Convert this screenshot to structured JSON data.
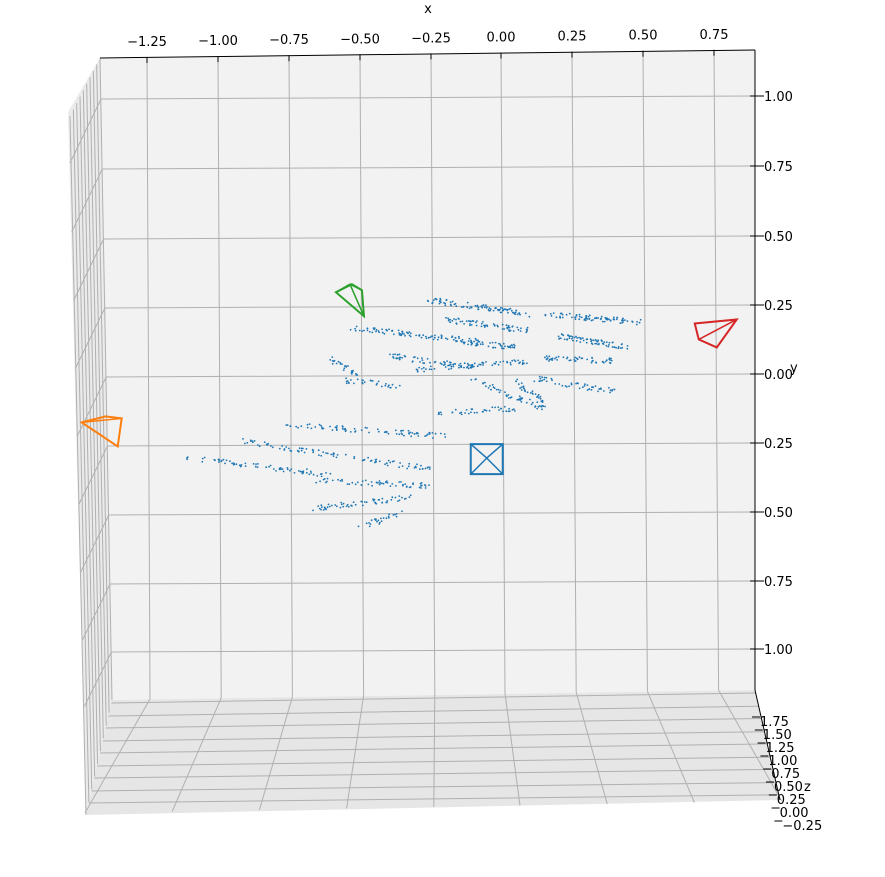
{
  "chart_data": {
    "type": "scatter",
    "title": "",
    "xlabel": "x",
    "ylabel": "y",
    "zlabel": "z",
    "x_ticks": [
      "−1.25",
      "−1.00",
      "−0.75",
      "−0.50",
      "−0.25",
      "0.00",
      "0.25",
      "0.50",
      "0.75"
    ],
    "y_ticks": [
      "1.00",
      "0.75",
      "0.50",
      "0.25",
      "0.00",
      "0.25",
      "0.50",
      "0.75",
      "1.00"
    ],
    "z_ticks": [
      "1.75",
      "1.50",
      "1.25",
      "1.00",
      "0.75",
      "0.50",
      "0.25",
      "0.00",
      "−0.25"
    ],
    "grid": true,
    "point_color": "#1f77b4",
    "cameras": [
      {
        "name": "camera-blue",
        "color": "#1f77b4",
        "x": -0.05,
        "y": -0.3
      },
      {
        "name": "camera-orange",
        "color": "#ff7f0e",
        "x": -1.38,
        "y": -0.2
      },
      {
        "name": "camera-green",
        "color": "#2ca02c",
        "x": -0.53,
        "y": 0.27
      },
      {
        "name": "camera-red",
        "color": "#d62728",
        "x": 0.75,
        "y": 0.15
      }
    ],
    "point_clusters": [
      {
        "x0": -1.1,
        "y0": -0.3,
        "x1": -0.6,
        "y1": -0.36,
        "n": 70
      },
      {
        "x0": -0.9,
        "y0": -0.24,
        "x1": -0.25,
        "y1": -0.34,
        "n": 90
      },
      {
        "x0": -0.75,
        "y0": -0.18,
        "x1": -0.2,
        "y1": -0.22,
        "n": 80
      },
      {
        "x0": -0.65,
        "y0": -0.48,
        "x1": -0.3,
        "y1": -0.44,
        "n": 60
      },
      {
        "x0": -0.65,
        "y0": -0.38,
        "x1": -0.25,
        "y1": -0.4,
        "n": 60
      },
      {
        "x0": -0.55,
        "y0": -0.02,
        "x1": -0.35,
        "y1": -0.04,
        "n": 30
      },
      {
        "x0": -0.6,
        "y0": 0.06,
        "x1": -0.5,
        "y1": 0.0,
        "n": 25
      },
      {
        "x0": -0.52,
        "y0": 0.17,
        "x1": -0.08,
        "y1": 0.12,
        "n": 90
      },
      {
        "x0": -0.4,
        "y0": 0.07,
        "x1": -0.1,
        "y1": 0.03,
        "n": 60
      },
      {
        "x0": -0.3,
        "y0": 0.02,
        "x1": 0.1,
        "y1": 0.05,
        "n": 60
      },
      {
        "x0": -0.25,
        "y0": 0.27,
        "x1": 0.1,
        "y1": 0.22,
        "n": 90
      },
      {
        "x0": -0.2,
        "y0": 0.2,
        "x1": 0.1,
        "y1": 0.16,
        "n": 70
      },
      {
        "x0": -0.15,
        "y0": 0.12,
        "x1": 0.05,
        "y1": 0.1,
        "n": 50
      },
      {
        "x0": -0.25,
        "y0": -0.14,
        "x1": 0.05,
        "y1": -0.12,
        "n": 40
      },
      {
        "x0": -0.1,
        "y0": -0.02,
        "x1": 0.15,
        "y1": -0.12,
        "n": 50
      },
      {
        "x0": 0.15,
        "y0": 0.22,
        "x1": 0.5,
        "y1": 0.19,
        "n": 80
      },
      {
        "x0": 0.2,
        "y0": 0.14,
        "x1": 0.45,
        "y1": 0.1,
        "n": 70
      },
      {
        "x0": 0.15,
        "y0": 0.06,
        "x1": 0.4,
        "y1": 0.05,
        "n": 50
      },
      {
        "x0": 0.1,
        "y0": -0.01,
        "x1": 0.4,
        "y1": -0.06,
        "n": 50
      },
      {
        "x0": 0.15,
        "y0": -0.1,
        "x1": 0.05,
        "y1": -0.02,
        "n": 30
      },
      {
        "x0": -0.5,
        "y0": -0.55,
        "x1": -0.35,
        "y1": -0.5,
        "n": 25
      }
    ]
  }
}
